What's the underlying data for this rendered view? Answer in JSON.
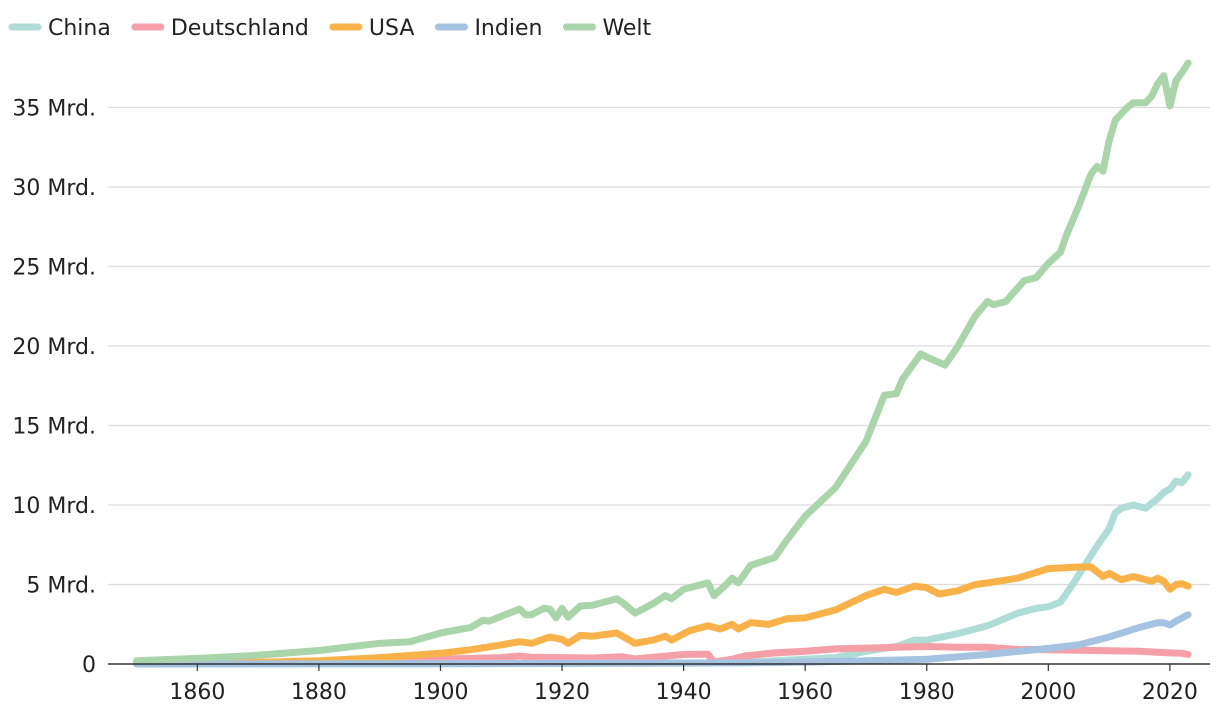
{
  "chart_data": {
    "type": "line",
    "title": "",
    "xlabel": "",
    "ylabel": "",
    "xlim": [
      1845,
      1850,
      2025
    ],
    "ylim": [
      0,
      38
    ],
    "x_ticks": [
      1860,
      1880,
      1900,
      1920,
      1940,
      1960,
      1980,
      2000,
      2020
    ],
    "x_tick_labels": [
      "1860",
      "1880",
      "1900",
      "1920",
      "1940",
      "1960",
      "1980",
      "2000",
      "2020"
    ],
    "y_ticks": [
      0,
      5,
      10,
      15,
      20,
      25,
      30,
      35
    ],
    "y_tick_labels": [
      "0",
      "5 Mrd.",
      "10 Mrd.",
      "15 Mrd.",
      "20 Mrd.",
      "25 Mrd.",
      "30 Mrd.",
      "35 Mrd."
    ],
    "grid": "horizontal",
    "legend_position": "top-left",
    "series": [
      {
        "name": "China",
        "color": "#b0dcd8",
        "points": [
          [
            1850,
            0
          ],
          [
            1900,
            0.01
          ],
          [
            1950,
            0.08
          ],
          [
            1955,
            0.2
          ],
          [
            1960,
            0.3
          ],
          [
            1965,
            0.4
          ],
          [
            1970,
            0.8
          ],
          [
            1975,
            1.1
          ],
          [
            1978,
            1.5
          ],
          [
            1980,
            1.5
          ],
          [
            1985,
            1.9
          ],
          [
            1990,
            2.4
          ],
          [
            1995,
            3.2
          ],
          [
            1998,
            3.5
          ],
          [
            2000,
            3.6
          ],
          [
            2002,
            3.9
          ],
          [
            2004,
            5.0
          ],
          [
            2006,
            6.2
          ],
          [
            2008,
            7.4
          ],
          [
            2010,
            8.5
          ],
          [
            2011,
            9.5
          ],
          [
            2012,
            9.8
          ],
          [
            2014,
            10.0
          ],
          [
            2016,
            9.8
          ],
          [
            2018,
            10.4
          ],
          [
            2019,
            10.8
          ],
          [
            2020,
            11.0
          ],
          [
            2021,
            11.5
          ],
          [
            2022,
            11.4
          ],
          [
            2023,
            11.9
          ]
        ]
      },
      {
        "name": "Deutschland",
        "color": "#f5a0a8",
        "points": [
          [
            1850,
            0.03
          ],
          [
            1860,
            0.05
          ],
          [
            1870,
            0.1
          ],
          [
            1880,
            0.17
          ],
          [
            1890,
            0.23
          ],
          [
            1900,
            0.31
          ],
          [
            1910,
            0.4
          ],
          [
            1913,
            0.5
          ],
          [
            1915,
            0.42
          ],
          [
            1920,
            0.4
          ],
          [
            1925,
            0.38
          ],
          [
            1930,
            0.45
          ],
          [
            1932,
            0.32
          ],
          [
            1935,
            0.43
          ],
          [
            1940,
            0.6
          ],
          [
            1944,
            0.62
          ],
          [
            1945,
            0.12
          ],
          [
            1948,
            0.3
          ],
          [
            1950,
            0.5
          ],
          [
            1955,
            0.7
          ],
          [
            1960,
            0.8
          ],
          [
            1965,
            0.95
          ],
          [
            1970,
            1.0
          ],
          [
            1975,
            1.05
          ],
          [
            1980,
            1.1
          ],
          [
            1985,
            1.05
          ],
          [
            1990,
            1.05
          ],
          [
            1995,
            0.92
          ],
          [
            2000,
            0.9
          ],
          [
            2005,
            0.87
          ],
          [
            2010,
            0.83
          ],
          [
            2015,
            0.8
          ],
          [
            2020,
            0.7
          ],
          [
            2022,
            0.67
          ],
          [
            2023,
            0.6
          ]
        ]
      },
      {
        "name": "USA",
        "color": "#f9b24a",
        "points": [
          [
            1850,
            0.02
          ],
          [
            1870,
            0.1
          ],
          [
            1880,
            0.2
          ],
          [
            1890,
            0.4
          ],
          [
            1900,
            0.67
          ],
          [
            1905,
            0.9
          ],
          [
            1910,
            1.2
          ],
          [
            1913,
            1.4
          ],
          [
            1915,
            1.3
          ],
          [
            1918,
            1.7
          ],
          [
            1920,
            1.55
          ],
          [
            1921,
            1.3
          ],
          [
            1923,
            1.8
          ],
          [
            1925,
            1.75
          ],
          [
            1929,
            1.95
          ],
          [
            1932,
            1.3
          ],
          [
            1935,
            1.5
          ],
          [
            1937,
            1.75
          ],
          [
            1938,
            1.5
          ],
          [
            1941,
            2.1
          ],
          [
            1944,
            2.4
          ],
          [
            1946,
            2.2
          ],
          [
            1948,
            2.5
          ],
          [
            1949,
            2.2
          ],
          [
            1951,
            2.6
          ],
          [
            1954,
            2.5
          ],
          [
            1957,
            2.85
          ],
          [
            1960,
            2.9
          ],
          [
            1965,
            3.4
          ],
          [
            1970,
            4.3
          ],
          [
            1973,
            4.7
          ],
          [
            1975,
            4.5
          ],
          [
            1978,
            4.9
          ],
          [
            1980,
            4.8
          ],
          [
            1982,
            4.4
          ],
          [
            1985,
            4.6
          ],
          [
            1988,
            5.0
          ],
          [
            1990,
            5.1
          ],
          [
            1995,
            5.4
          ],
          [
            2000,
            6.0
          ],
          [
            2005,
            6.1
          ],
          [
            2007,
            6.1
          ],
          [
            2009,
            5.5
          ],
          [
            2010,
            5.7
          ],
          [
            2012,
            5.3
          ],
          [
            2014,
            5.5
          ],
          [
            2017,
            5.2
          ],
          [
            2018,
            5.4
          ],
          [
            2019,
            5.2
          ],
          [
            2020,
            4.7
          ],
          [
            2021,
            5.0
          ],
          [
            2022,
            5.05
          ],
          [
            2023,
            4.9
          ]
        ]
      },
      {
        "name": "Indien",
        "color": "#a5c3e0",
        "points": [
          [
            1850,
            0
          ],
          [
            1900,
            0.02
          ],
          [
            1950,
            0.07
          ],
          [
            1960,
            0.12
          ],
          [
            1970,
            0.2
          ],
          [
            1980,
            0.3
          ],
          [
            1990,
            0.6
          ],
          [
            2000,
            0.98
          ],
          [
            2005,
            1.2
          ],
          [
            2010,
            1.7
          ],
          [
            2015,
            2.3
          ],
          [
            2018,
            2.6
          ],
          [
            2019,
            2.6
          ],
          [
            2020,
            2.45
          ],
          [
            2021,
            2.7
          ],
          [
            2023,
            3.1
          ]
        ]
      },
      {
        "name": "Welt",
        "color": "#aad4aa",
        "points": [
          [
            1850,
            0.2
          ],
          [
            1860,
            0.35
          ],
          [
            1870,
            0.55
          ],
          [
            1880,
            0.85
          ],
          [
            1890,
            1.3
          ],
          [
            1895,
            1.4
          ],
          [
            1900,
            1.95
          ],
          [
            1905,
            2.3
          ],
          [
            1907,
            2.75
          ],
          [
            1908,
            2.7
          ],
          [
            1910,
            3.0
          ],
          [
            1913,
            3.45
          ],
          [
            1914,
            3.1
          ],
          [
            1915,
            3.1
          ],
          [
            1917,
            3.5
          ],
          [
            1918,
            3.45
          ],
          [
            1919,
            2.9
          ],
          [
            1920,
            3.5
          ],
          [
            1921,
            2.95
          ],
          [
            1923,
            3.65
          ],
          [
            1925,
            3.7
          ],
          [
            1927,
            3.9
          ],
          [
            1929,
            4.1
          ],
          [
            1930,
            3.85
          ],
          [
            1932,
            3.2
          ],
          [
            1935,
            3.8
          ],
          [
            1937,
            4.3
          ],
          [
            1938,
            4.1
          ],
          [
            1940,
            4.7
          ],
          [
            1944,
            5.1
          ],
          [
            1945,
            4.3
          ],
          [
            1947,
            5.0
          ],
          [
            1948,
            5.4
          ],
          [
            1949,
            5.1
          ],
          [
            1951,
            6.2
          ],
          [
            1955,
            6.7
          ],
          [
            1957,
            7.8
          ],
          [
            1960,
            9.3
          ],
          [
            1965,
            11.1
          ],
          [
            1970,
            14.0
          ],
          [
            1973,
            16.9
          ],
          [
            1975,
            17.0
          ],
          [
            1976,
            17.9
          ],
          [
            1979,
            19.5
          ],
          [
            1980,
            19.3
          ],
          [
            1983,
            18.8
          ],
          [
            1985,
            19.9
          ],
          [
            1988,
            21.9
          ],
          [
            1990,
            22.8
          ],
          [
            1991,
            22.6
          ],
          [
            1993,
            22.8
          ],
          [
            1996,
            24.1
          ],
          [
            1998,
            24.3
          ],
          [
            2000,
            25.2
          ],
          [
            2002,
            25.9
          ],
          [
            2003,
            27.0
          ],
          [
            2005,
            28.8
          ],
          [
            2007,
            30.8
          ],
          [
            2008,
            31.3
          ],
          [
            2009,
            31.0
          ],
          [
            2010,
            32.9
          ],
          [
            2011,
            34.2
          ],
          [
            2013,
            35.0
          ],
          [
            2014,
            35.3
          ],
          [
            2016,
            35.3
          ],
          [
            2017,
            35.7
          ],
          [
            2018,
            36.5
          ],
          [
            2019,
            37.0
          ],
          [
            2020,
            35.1
          ],
          [
            2021,
            36.7
          ],
          [
            2022,
            37.2
          ],
          [
            2023,
            37.8
          ]
        ]
      }
    ]
  }
}
